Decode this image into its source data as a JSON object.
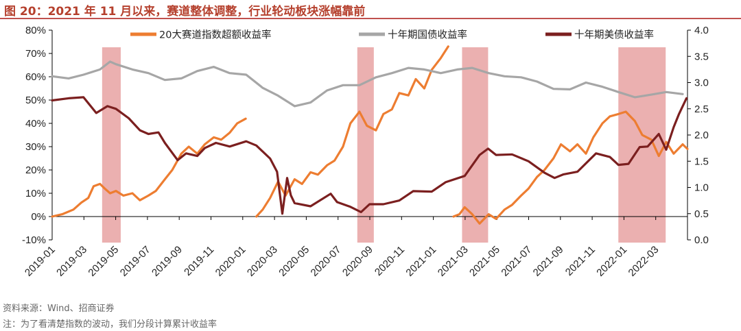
{
  "chart_data": {
    "type": "line",
    "title": "图 20：2021 年 11 月以来，赛道整体调整，行业轮动板块涨幅靠前",
    "source": "资料来源：Wind、招商证券",
    "note": "注：为了看清楚指数的波动，我们分段计算累计收益率",
    "y_left": {
      "min": -0.1,
      "max": 0.8,
      "ticks": [
        "-10%",
        "0%",
        "10%",
        "20%",
        "30%",
        "40%",
        "50%",
        "60%",
        "70%",
        "80%"
      ]
    },
    "y_right": {
      "min": 0.0,
      "max": 4.0,
      "ticks": [
        "0.0",
        "0.5",
        "1.0",
        "1.5",
        "2.0",
        "2.5",
        "3.0",
        "3.5",
        "4.0"
      ]
    },
    "x_range": [
      "2019-01-01",
      "2022-04-10"
    ],
    "x_ticks": [
      "2019-01",
      "2019-03",
      "2019-05",
      "2019-07",
      "2019-09",
      "2019-11",
      "2020-01",
      "2020-03",
      "2020-05",
      "2020-07",
      "2020-09",
      "2020-11",
      "2021-01",
      "2021-03",
      "2021-05",
      "2021-07",
      "2021-09",
      "2021-11",
      "2022-01",
      "2022-03"
    ],
    "shaded_periods": [
      {
        "start": "2019-04-05",
        "end": "2019-05-10"
      },
      {
        "start": "2020-07-28",
        "end": "2020-08-28"
      },
      {
        "start": "2021-02-10",
        "end": "2021-03-31"
      },
      {
        "start": "2021-12-01",
        "end": "2022-02-28"
      }
    ],
    "shade_color": "#e8a2a2",
    "series": [
      {
        "name": "20大赛道指数超额收益率",
        "axis": "left",
        "color": "#ed7d31",
        "segments": [
          [
            [
              "2019-01-01",
              0.0
            ],
            [
              "2019-01-20",
              0.01
            ],
            [
              "2019-02-10",
              0.03
            ],
            [
              "2019-02-25",
              0.06
            ],
            [
              "2019-03-10",
              0.08
            ],
            [
              "2019-03-20",
              0.13
            ],
            [
              "2019-04-01",
              0.14
            ],
            [
              "2019-04-10",
              0.12
            ],
            [
              "2019-04-20",
              0.1
            ],
            [
              "2019-05-01",
              0.11
            ],
            [
              "2019-05-15",
              0.09
            ],
            [
              "2019-06-01",
              0.1
            ],
            [
              "2019-06-15",
              0.07
            ],
            [
              "2019-07-01",
              0.09
            ],
            [
              "2019-07-15",
              0.11
            ],
            [
              "2019-08-01",
              0.16
            ],
            [
              "2019-08-15",
              0.2
            ],
            [
              "2019-09-01",
              0.27
            ],
            [
              "2019-09-15",
              0.3
            ],
            [
              "2019-10-01",
              0.27
            ],
            [
              "2019-10-15",
              0.31
            ],
            [
              "2019-11-01",
              0.34
            ],
            [
              "2019-11-15",
              0.33
            ],
            [
              "2019-12-01",
              0.36
            ],
            [
              "2019-12-15",
              0.4
            ],
            [
              "2019-12-31",
              0.42
            ]
          ],
          [
            [
              "2020-01-20",
              0.0
            ],
            [
              "2020-02-01",
              0.03
            ],
            [
              "2020-02-15",
              0.08
            ],
            [
              "2020-03-01",
              0.15
            ],
            [
              "2020-03-15",
              0.09
            ],
            [
              "2020-04-01",
              0.16
            ],
            [
              "2020-04-15",
              0.14
            ],
            [
              "2020-05-01",
              0.19
            ],
            [
              "2020-05-15",
              0.18
            ],
            [
              "2020-06-01",
              0.22
            ],
            [
              "2020-06-15",
              0.24
            ],
            [
              "2020-07-01",
              0.3
            ],
            [
              "2020-07-15",
              0.4
            ],
            [
              "2020-08-01",
              0.45
            ],
            [
              "2020-08-15",
              0.39
            ],
            [
              "2020-09-01",
              0.37
            ],
            [
              "2020-09-15",
              0.44
            ],
            [
              "2020-10-01",
              0.46
            ],
            [
              "2020-10-15",
              0.53
            ],
            [
              "2020-11-01",
              0.52
            ],
            [
              "2020-11-15",
              0.59
            ],
            [
              "2020-12-01",
              0.55
            ],
            [
              "2020-12-15",
              0.63
            ],
            [
              "2021-01-01",
              0.68
            ],
            [
              "2021-01-15",
              0.73
            ]
          ],
          [
            [
              "2021-01-25",
              0.0
            ],
            [
              "2021-02-05",
              0.01
            ],
            [
              "2021-02-15",
              0.04
            ],
            [
              "2021-03-01",
              0.01
            ],
            [
              "2021-03-15",
              -0.03
            ],
            [
              "2021-04-01",
              0.01
            ],
            [
              "2021-04-15",
              -0.01
            ],
            [
              "2021-05-01",
              0.03
            ],
            [
              "2021-05-15",
              0.05
            ],
            [
              "2021-06-01",
              0.09
            ],
            [
              "2021-06-15",
              0.12
            ],
            [
              "2021-07-01",
              0.17
            ],
            [
              "2021-07-15",
              0.2
            ],
            [
              "2021-08-01",
              0.25
            ],
            [
              "2021-08-15",
              0.31
            ],
            [
              "2021-09-01",
              0.28
            ],
            [
              "2021-09-15",
              0.31
            ],
            [
              "2021-10-01",
              0.27
            ],
            [
              "2021-10-15",
              0.34
            ],
            [
              "2021-11-01",
              0.4
            ],
            [
              "2021-11-15",
              0.43
            ],
            [
              "2021-12-01",
              0.44
            ],
            [
              "2021-12-15",
              0.45
            ],
            [
              "2022-01-01",
              0.41
            ],
            [
              "2022-01-15",
              0.35
            ],
            [
              "2022-02-01",
              0.33
            ],
            [
              "2022-02-15",
              0.26
            ],
            [
              "2022-03-01",
              0.32
            ],
            [
              "2022-03-15",
              0.27
            ],
            [
              "2022-04-01",
              0.31
            ],
            [
              "2022-04-10",
              0.29
            ]
          ]
        ]
      },
      {
        "name": "十年期国债收益率",
        "axis": "right",
        "color": "#a6a6a6",
        "values": [
          [
            "2019-01-01",
            3.12
          ],
          [
            "2019-02-01",
            3.08
          ],
          [
            "2019-03-01",
            3.15
          ],
          [
            "2019-04-01",
            3.25
          ],
          [
            "2019-04-20",
            3.4
          ],
          [
            "2019-05-01",
            3.35
          ],
          [
            "2019-06-01",
            3.25
          ],
          [
            "2019-07-01",
            3.18
          ],
          [
            "2019-08-01",
            3.05
          ],
          [
            "2019-09-01",
            3.08
          ],
          [
            "2019-10-01",
            3.22
          ],
          [
            "2019-11-01",
            3.3
          ],
          [
            "2019-12-01",
            3.18
          ],
          [
            "2020-01-01",
            3.15
          ],
          [
            "2020-02-01",
            2.9
          ],
          [
            "2020-03-01",
            2.75
          ],
          [
            "2020-04-01",
            2.55
          ],
          [
            "2020-05-01",
            2.62
          ],
          [
            "2020-06-01",
            2.85
          ],
          [
            "2020-07-01",
            2.95
          ],
          [
            "2020-08-01",
            2.95
          ],
          [
            "2020-09-01",
            3.1
          ],
          [
            "2020-10-01",
            3.18
          ],
          [
            "2020-11-01",
            3.28
          ],
          [
            "2020-12-01",
            3.25
          ],
          [
            "2021-01-01",
            3.18
          ],
          [
            "2021-02-01",
            3.25
          ],
          [
            "2021-03-01",
            3.28
          ],
          [
            "2021-04-01",
            3.18
          ],
          [
            "2021-05-01",
            3.12
          ],
          [
            "2021-06-01",
            3.1
          ],
          [
            "2021-07-01",
            3.02
          ],
          [
            "2021-08-01",
            2.88
          ],
          [
            "2021-09-01",
            2.87
          ],
          [
            "2021-10-01",
            3.0
          ],
          [
            "2021-11-01",
            2.92
          ],
          [
            "2021-12-01",
            2.82
          ],
          [
            "2022-01-01",
            2.72
          ],
          [
            "2022-02-01",
            2.77
          ],
          [
            "2022-03-01",
            2.82
          ],
          [
            "2022-04-01",
            2.78
          ]
        ]
      },
      {
        "name": "十年期美债收益率",
        "axis": "right",
        "color": "#7b1f1f",
        "values": [
          [
            "2019-01-01",
            2.66
          ],
          [
            "2019-02-01",
            2.7
          ],
          [
            "2019-03-01",
            2.72
          ],
          [
            "2019-03-25",
            2.42
          ],
          [
            "2019-04-15",
            2.55
          ],
          [
            "2019-05-01",
            2.5
          ],
          [
            "2019-05-25",
            2.32
          ],
          [
            "2019-06-15",
            2.09
          ],
          [
            "2019-07-01",
            2.02
          ],
          [
            "2019-07-20",
            2.05
          ],
          [
            "2019-08-01",
            1.85
          ],
          [
            "2019-08-25",
            1.52
          ],
          [
            "2019-09-10",
            1.65
          ],
          [
            "2019-10-01",
            1.6
          ],
          [
            "2019-10-15",
            1.75
          ],
          [
            "2019-11-05",
            1.85
          ],
          [
            "2019-12-01",
            1.78
          ],
          [
            "2020-01-01",
            1.88
          ],
          [
            "2020-01-20",
            1.8
          ],
          [
            "2020-02-15",
            1.55
          ],
          [
            "2020-02-28",
            1.3
          ],
          [
            "2020-03-09",
            0.5
          ],
          [
            "2020-03-18",
            1.18
          ],
          [
            "2020-03-25",
            0.85
          ],
          [
            "2020-04-01",
            0.7
          ],
          [
            "2020-05-01",
            0.64
          ],
          [
            "2020-06-08",
            0.88
          ],
          [
            "2020-06-20",
            0.72
          ],
          [
            "2020-07-15",
            0.63
          ],
          [
            "2020-08-04",
            0.53
          ],
          [
            "2020-08-20",
            0.68
          ],
          [
            "2020-09-15",
            0.68
          ],
          [
            "2020-10-15",
            0.75
          ],
          [
            "2020-11-10",
            0.93
          ],
          [
            "2020-12-15",
            0.92
          ],
          [
            "2021-01-10",
            1.1
          ],
          [
            "2021-02-15",
            1.22
          ],
          [
            "2021-03-15",
            1.62
          ],
          [
            "2021-03-31",
            1.74
          ],
          [
            "2021-04-15",
            1.62
          ],
          [
            "2021-05-15",
            1.63
          ],
          [
            "2021-06-15",
            1.5
          ],
          [
            "2021-07-15",
            1.28
          ],
          [
            "2021-08-03",
            1.18
          ],
          [
            "2021-08-20",
            1.25
          ],
          [
            "2021-09-15",
            1.3
          ],
          [
            "2021-10-20",
            1.65
          ],
          [
            "2021-11-15",
            1.58
          ],
          [
            "2021-12-01",
            1.43
          ],
          [
            "2021-12-20",
            1.45
          ],
          [
            "2022-01-10",
            1.77
          ],
          [
            "2022-01-25",
            1.78
          ],
          [
            "2022-02-15",
            2.02
          ],
          [
            "2022-03-01",
            1.72
          ],
          [
            "2022-03-15",
            2.15
          ],
          [
            "2022-03-25",
            2.4
          ],
          [
            "2022-04-08",
            2.7
          ]
        ]
      }
    ]
  }
}
